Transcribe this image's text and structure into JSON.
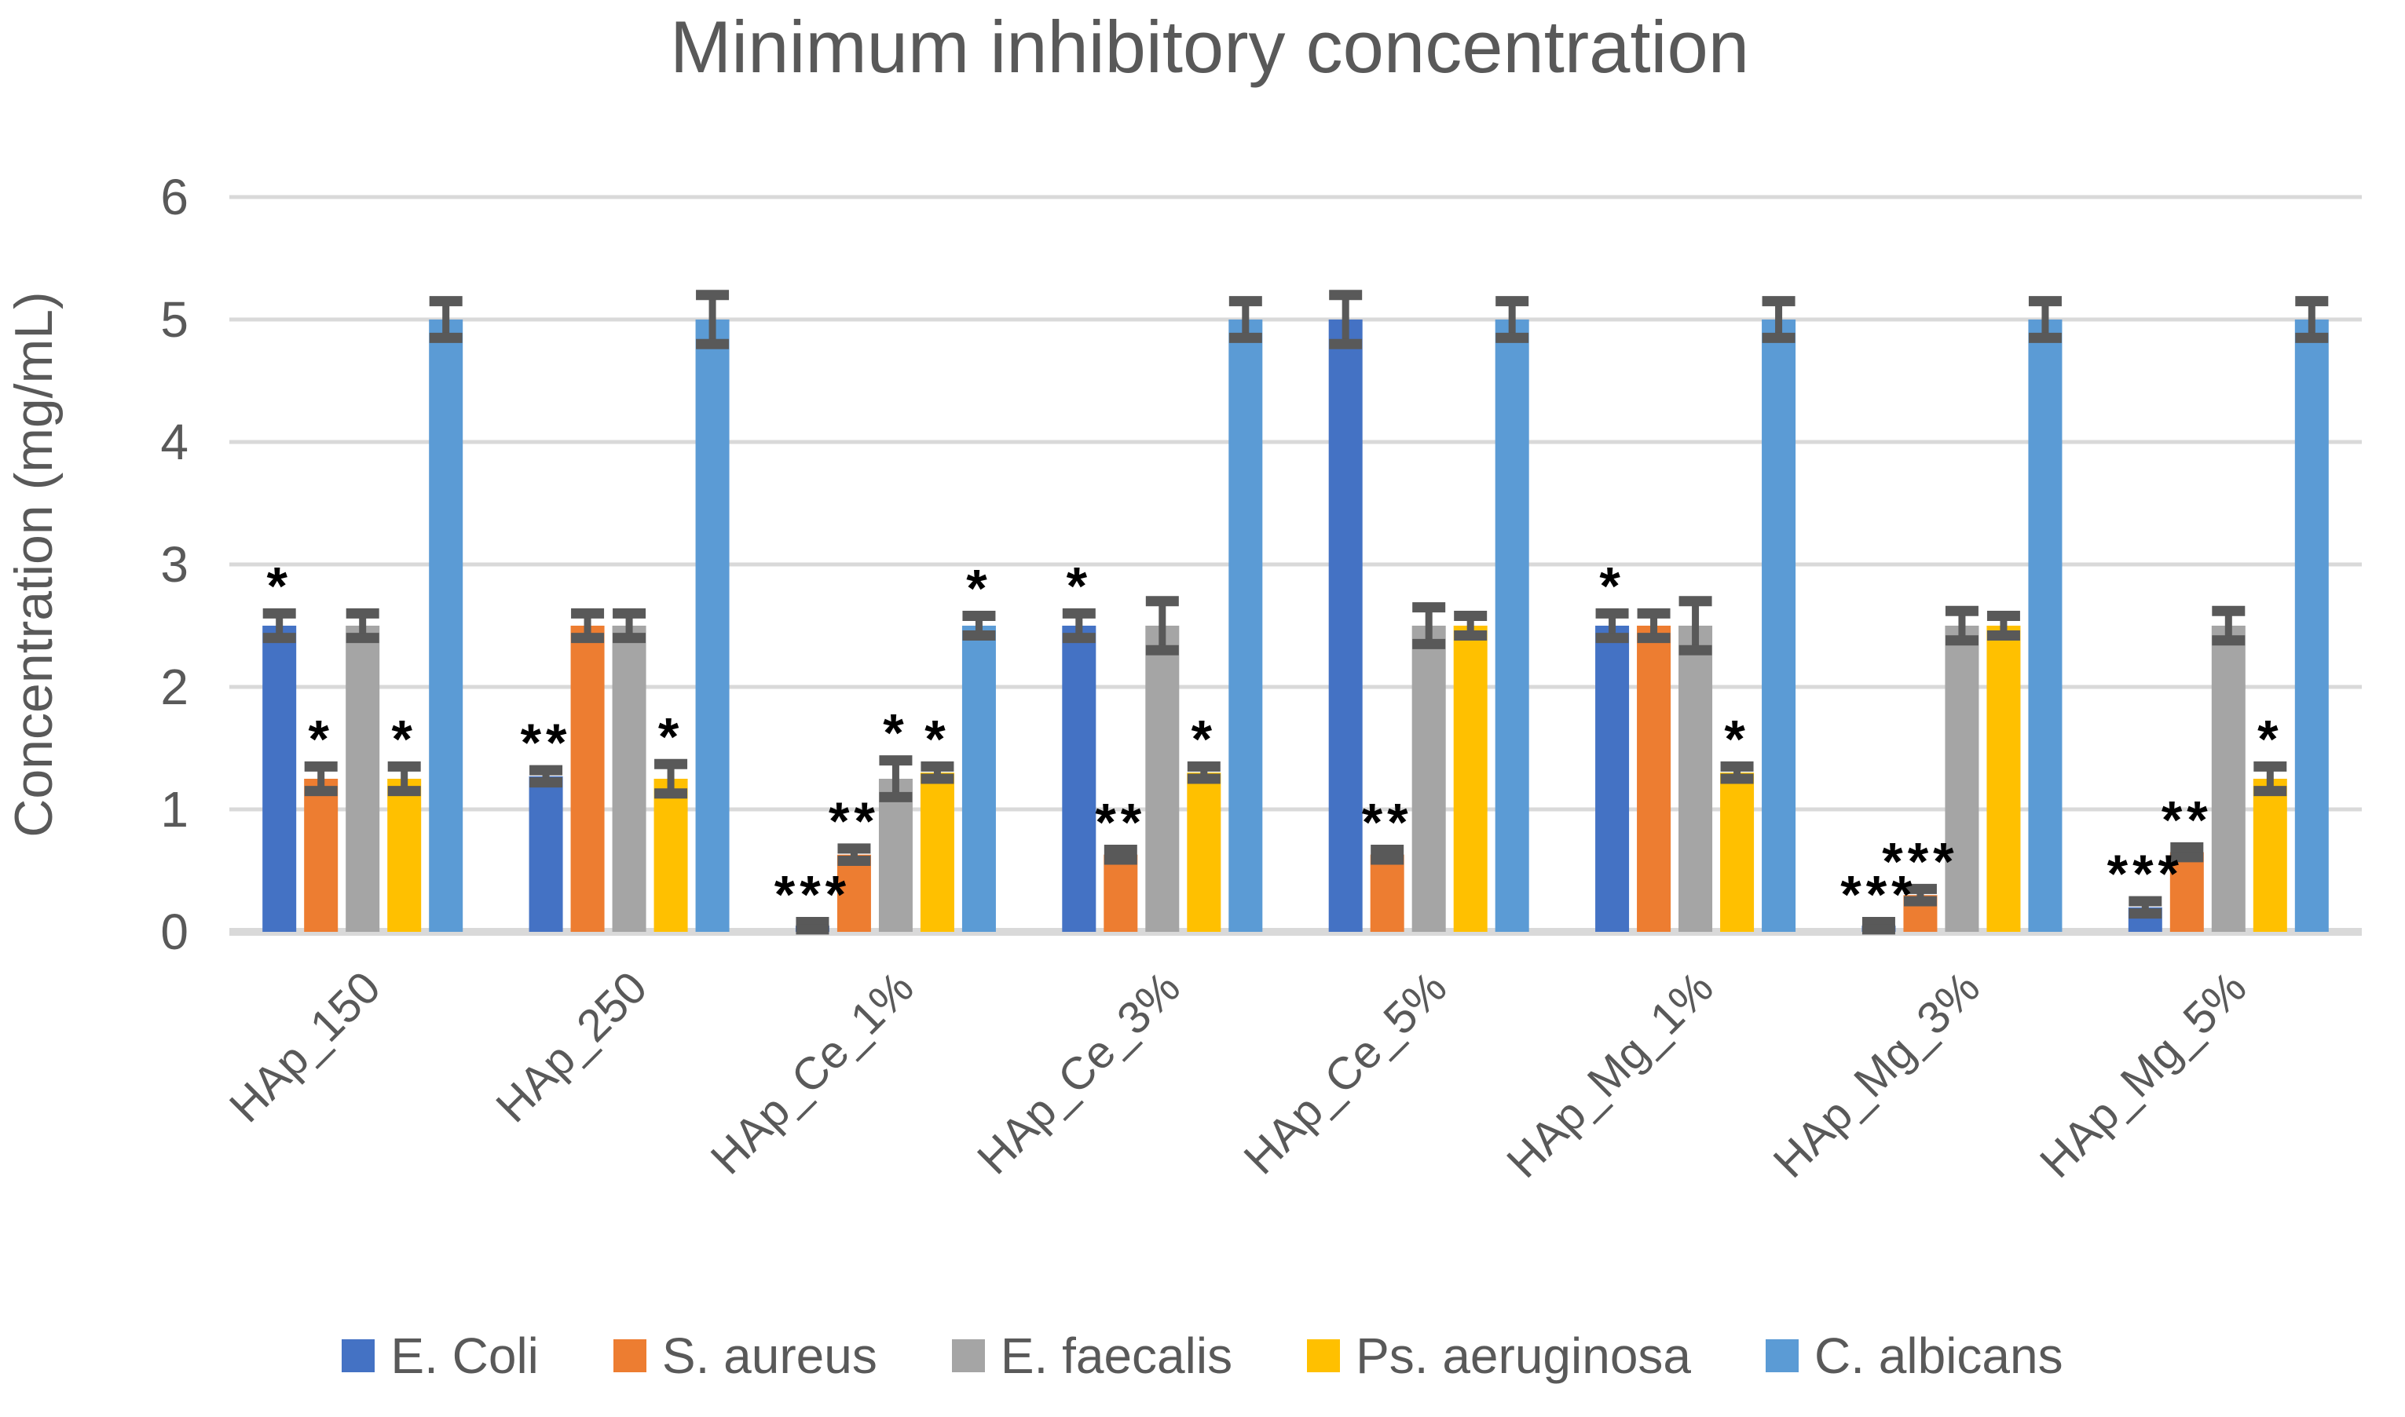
{
  "title": "Minimum inhibitory concentration",
  "chart_data": {
    "type": "bar",
    "title": "Minimum inhibitory concentration",
    "xlabel": "",
    "ylabel": "Concentration (mg/mL)",
    "ylim": [
      0,
      6
    ],
    "yticks": [
      0,
      1,
      2,
      3,
      4,
      5,
      6
    ],
    "grid": true,
    "legend_position": "bottom",
    "categories": [
      "HAp_150",
      "HAp_250",
      "HAp_Ce_1%",
      "HAp_Ce_3%",
      "HAp_Ce_5%",
      "HAp_Mg_1%",
      "HAp_Mg_3%",
      "HAp_Mg_5%"
    ],
    "series": [
      {
        "name": "E. Coli",
        "color": "#4472C4",
        "values": [
          2.5,
          1.27,
          0.05,
          2.5,
          5.0,
          2.5,
          0.05,
          0.2
        ],
        "errors": [
          0.1,
          0.05,
          0.03,
          0.1,
          0.2,
          0.1,
          0.03,
          0.05
        ],
        "significance": [
          "*",
          "**",
          "***",
          "*",
          "",
          "*",
          "***",
          "***"
        ]
      },
      {
        "name": "S. aureus",
        "color": "#ED7D31",
        "values": [
          1.25,
          2.5,
          0.63,
          0.63,
          0.63,
          2.5,
          0.3,
          0.65
        ],
        "errors": [
          0.1,
          0.1,
          0.05,
          0.04,
          0.04,
          0.1,
          0.05,
          0.04
        ],
        "significance": [
          "*",
          "",
          "**",
          "**",
          "**",
          "",
          "***",
          "**"
        ]
      },
      {
        "name": "E. faecalis",
        "color": "#A5A5A5",
        "values": [
          2.5,
          2.5,
          1.25,
          2.5,
          2.5,
          2.5,
          2.5,
          2.5
        ],
        "errors": [
          0.1,
          0.1,
          0.15,
          0.2,
          0.15,
          0.2,
          0.12,
          0.12
        ],
        "significance": [
          "",
          "",
          "*",
          "",
          "",
          "",
          "",
          ""
        ]
      },
      {
        "name": "Ps. aeruginosa",
        "color": "#FFC000",
        "values": [
          1.25,
          1.25,
          1.3,
          1.3,
          2.5,
          1.3,
          2.5,
          1.25
        ],
        "errors": [
          0.1,
          0.12,
          0.05,
          0.05,
          0.08,
          0.05,
          0.08,
          0.1
        ],
        "significance": [
          "*",
          "*",
          "*",
          "*",
          "",
          "*",
          "",
          "*"
        ]
      },
      {
        "name": "C. albicans",
        "color": "#5B9BD5",
        "values": [
          5.0,
          5.0,
          2.5,
          5.0,
          5.0,
          5.0,
          5.0,
          5.0
        ],
        "errors": [
          0.15,
          0.2,
          0.08,
          0.15,
          0.15,
          0.15,
          0.15,
          0.15
        ],
        "significance": [
          "",
          "",
          "*",
          "",
          "",
          "",
          "",
          ""
        ]
      }
    ],
    "grid_color": "#D9D9D9",
    "axis_text_color": "#595959",
    "title_color": "#595959",
    "error_bar_color": "#595959",
    "significance_color": "#000000",
    "background_color": "#FFFFFF"
  }
}
